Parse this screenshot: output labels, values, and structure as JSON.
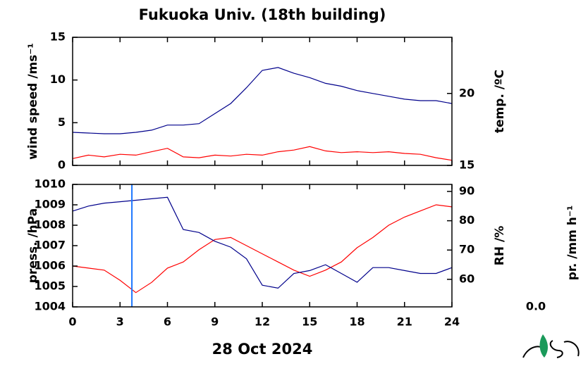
{
  "chart_data": [
    {
      "type": "line",
      "title": "Fukuoka Univ. (18th building)",
      "x": [
        0,
        1,
        2,
        3,
        4,
        5,
        6,
        7,
        8,
        9,
        10,
        11,
        12,
        13,
        14,
        15,
        16,
        17,
        18,
        19,
        20,
        21,
        22,
        23,
        24
      ],
      "xlim": [
        0,
        24
      ],
      "xticks": [
        0,
        3,
        6,
        9,
        12,
        15,
        18,
        21,
        24
      ],
      "ylim": [
        0,
        15
      ],
      "yticks": [
        0,
        5,
        10,
        15
      ],
      "y2lim": [
        15,
        23.9
      ],
      "y2ticks": [
        15,
        20
      ],
      "series": [
        {
          "name": "wind speed /ms⁻¹",
          "color": "#ff0000",
          "axis": "y",
          "values": [
            0.8,
            1.2,
            1.0,
            1.3,
            1.2,
            1.6,
            2.0,
            1.0,
            0.9,
            1.2,
            1.1,
            1.3,
            1.2,
            1.6,
            1.8,
            2.2,
            1.7,
            1.5,
            1.6,
            1.5,
            1.6,
            1.4,
            1.3,
            0.9,
            0.6
          ]
        },
        {
          "name": "temp. /ºC",
          "color": "#00008b",
          "axis": "y2",
          "values": [
            17.3,
            17.25,
            17.2,
            17.2,
            17.3,
            17.45,
            17.8,
            17.8,
            17.9,
            18.6,
            19.3,
            20.4,
            21.6,
            21.8,
            21.4,
            21.1,
            20.7,
            20.5,
            20.2,
            20.0,
            19.8,
            19.6,
            19.5,
            19.5,
            19.3
          ]
        }
      ]
    },
    {
      "type": "line",
      "xlabel": "28 Oct 2024",
      "x": [
        0,
        1,
        2,
        3,
        4,
        5,
        6,
        7,
        8,
        9,
        10,
        11,
        12,
        13,
        14,
        15,
        16,
        17,
        18,
        19,
        20,
        21,
        22,
        23,
        24
      ],
      "xlim": [
        0,
        24
      ],
      "xticks": [
        0,
        3,
        6,
        9,
        12,
        15,
        18,
        21,
        24
      ],
      "ylim": [
        1004,
        1010
      ],
      "yticks": [
        1004,
        1005,
        1006,
        1007,
        1008,
        1009,
        1010
      ],
      "y2lim": [
        50.6,
        92.4
      ],
      "y2ticks": [
        60,
        70,
        80,
        90
      ],
      "y3lim": [
        0,
        1
      ],
      "y3ticks": [
        {
          "value": 0,
          "label": "0.0"
        }
      ],
      "series": [
        {
          "name": "press. /hPa",
          "color": "#ff0000",
          "axis": "y",
          "values": [
            1006.0,
            1005.9,
            1005.8,
            1005.3,
            1004.7,
            1005.2,
            1005.9,
            1006.2,
            1006.8,
            1007.3,
            1007.4,
            1007.0,
            1006.6,
            1006.2,
            1005.8,
            1005.5,
            1005.8,
            1006.2,
            1006.9,
            1007.4,
            1008.0,
            1008.4,
            1008.7,
            1009.0,
            1008.9
          ]
        },
        {
          "name": "RH /%",
          "color": "#00008b",
          "axis": "y2",
          "values": [
            83.3,
            85,
            86,
            86.5,
            87,
            87.5,
            88,
            77,
            76,
            73,
            71,
            67,
            58,
            57,
            62,
            63,
            65,
            62,
            59,
            64,
            64,
            63,
            62,
            62,
            64
          ]
        },
        {
          "name": "pr. /mm h⁻¹",
          "color": "#1e78ff",
          "axis": "y3",
          "type": "bar",
          "x": [
            3.75
          ],
          "values": [
            1
          ]
        }
      ]
    }
  ]
}
